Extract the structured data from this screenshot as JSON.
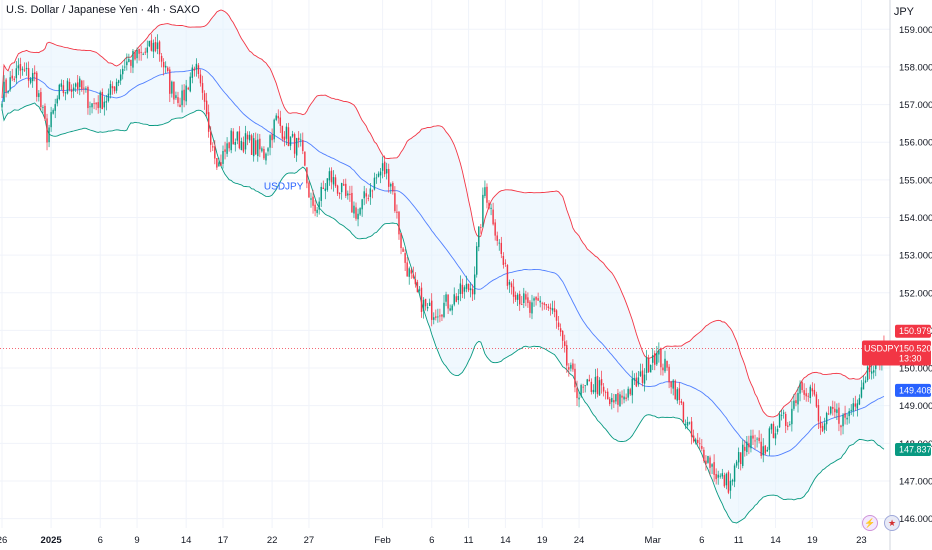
{
  "header": {
    "symbol_title": "U.S. Dollar / Japanese Yen · 4h · SAXO",
    "currency": "JPY"
  },
  "icons": {
    "bolt": "lightning-icon",
    "flag": "us-flag-icon"
  },
  "colors": {
    "up": "#089981",
    "down": "#f23645",
    "basis": "#2962ff",
    "upper": "#f23645",
    "lower": "#089981",
    "band_fill": "#e3f2fd",
    "price_tag": "#f23645",
    "basis_tag": "#2962ff",
    "lower_tag": "#089981"
  },
  "chart_data": {
    "type": "candlestick",
    "symbol": "USDJPY",
    "series_label": "USDJPY",
    "y_ticks": [
      "146.000",
      "147.000",
      "148.000",
      "149.000",
      "150.000",
      "151.000",
      "152.000",
      "153.000",
      "154.000",
      "155.000",
      "156.000",
      "157.000",
      "158.000",
      "159.000"
    ],
    "ylim": [
      145.75,
      159.3
    ],
    "x_ticks": [
      {
        "label": "26",
        "bar": 0
      },
      {
        "label": "2025",
        "bar": 24,
        "bold": true
      },
      {
        "label": "6",
        "bar": 48
      },
      {
        "label": "9",
        "bar": 66
      },
      {
        "label": "14",
        "bar": 90
      },
      {
        "label": "17",
        "bar": 108
      },
      {
        "label": "22",
        "bar": 132
      },
      {
        "label": "27",
        "bar": 150
      },
      {
        "label": "Feb",
        "bar": 186
      },
      {
        "label": "6",
        "bar": 210
      },
      {
        "label": "11",
        "bar": 228
      },
      {
        "label": "14",
        "bar": 246
      },
      {
        "label": "19",
        "bar": 264
      },
      {
        "label": "24",
        "bar": 282
      },
      {
        "label": "Mar",
        "bar": 318
      },
      {
        "label": "6",
        "bar": 342
      },
      {
        "label": "11",
        "bar": 360
      },
      {
        "label": "14",
        "bar": 378
      },
      {
        "label": "19",
        "bar": 396
      },
      {
        "label": "23",
        "bar": 420
      }
    ],
    "bar_count": 432,
    "anchors": [
      {
        "bar": 0,
        "close": 157.3
      },
      {
        "bar": 8,
        "close": 157.9
      },
      {
        "bar": 16,
        "close": 157.7
      },
      {
        "bar": 22,
        "close": 156.2
      },
      {
        "bar": 28,
        "close": 157.3
      },
      {
        "bar": 36,
        "close": 157.6
      },
      {
        "bar": 44,
        "close": 157.0
      },
      {
        "bar": 52,
        "close": 157.2
      },
      {
        "bar": 60,
        "close": 158.1
      },
      {
        "bar": 68,
        "close": 158.3
      },
      {
        "bar": 76,
        "close": 158.6
      },
      {
        "bar": 82,
        "close": 157.5
      },
      {
        "bar": 88,
        "close": 157.1
      },
      {
        "bar": 94,
        "close": 158.1
      },
      {
        "bar": 100,
        "close": 156.6
      },
      {
        "bar": 106,
        "close": 155.4
      },
      {
        "bar": 112,
        "close": 156.1
      },
      {
        "bar": 120,
        "close": 156.0
      },
      {
        "bar": 128,
        "close": 155.7
      },
      {
        "bar": 134,
        "close": 156.6
      },
      {
        "bar": 140,
        "close": 156.1
      },
      {
        "bar": 146,
        "close": 155.8
      },
      {
        "bar": 152,
        "close": 154.1
      },
      {
        "bar": 160,
        "close": 155.1
      },
      {
        "bar": 168,
        "close": 154.5
      },
      {
        "bar": 174,
        "close": 154.1
      },
      {
        "bar": 180,
        "close": 154.8
      },
      {
        "bar": 186,
        "close": 155.3
      },
      {
        "bar": 190,
        "close": 155.0
      },
      {
        "bar": 196,
        "close": 153.0
      },
      {
        "bar": 202,
        "close": 152.0
      },
      {
        "bar": 208,
        "close": 151.5
      },
      {
        "bar": 214,
        "close": 151.6
      },
      {
        "bar": 222,
        "close": 151.9
      },
      {
        "bar": 230,
        "close": 152.2
      },
      {
        "bar": 236,
        "close": 154.8
      },
      {
        "bar": 240,
        "close": 154.0
      },
      {
        "bar": 246,
        "close": 152.5
      },
      {
        "bar": 252,
        "close": 152.0
      },
      {
        "bar": 258,
        "close": 151.5
      },
      {
        "bar": 264,
        "close": 151.8
      },
      {
        "bar": 270,
        "close": 151.4
      },
      {
        "bar": 276,
        "close": 150.1
      },
      {
        "bar": 282,
        "close": 149.3
      },
      {
        "bar": 290,
        "close": 149.6
      },
      {
        "bar": 298,
        "close": 149.0
      },
      {
        "bar": 306,
        "close": 149.4
      },
      {
        "bar": 312,
        "close": 149.7
      },
      {
        "bar": 318,
        "close": 150.4
      },
      {
        "bar": 322,
        "close": 150.2
      },
      {
        "bar": 328,
        "close": 149.6
      },
      {
        "bar": 334,
        "close": 148.6
      },
      {
        "bar": 338,
        "close": 148.0
      },
      {
        "bar": 344,
        "close": 147.7
      },
      {
        "bar": 350,
        "close": 147.1
      },
      {
        "bar": 356,
        "close": 146.9
      },
      {
        "bar": 360,
        "close": 147.6
      },
      {
        "bar": 366,
        "close": 148.0
      },
      {
        "bar": 372,
        "close": 147.8
      },
      {
        "bar": 378,
        "close": 148.5
      },
      {
        "bar": 384,
        "close": 148.6
      },
      {
        "bar": 390,
        "close": 149.6
      },
      {
        "bar": 396,
        "close": 149.4
      },
      {
        "bar": 400,
        "close": 148.3
      },
      {
        "bar": 406,
        "close": 148.8
      },
      {
        "bar": 412,
        "close": 148.6
      },
      {
        "bar": 418,
        "close": 149.3
      },
      {
        "bar": 424,
        "close": 150.1
      },
      {
        "bar": 431,
        "close": 150.5
      }
    ],
    "bollinger": {
      "period": 40,
      "mult": 2
    },
    "last_price": "150.520",
    "countdown": "13:30",
    "upper_value": "150.979",
    "basis_value": "149.408",
    "lower_value": "147.837",
    "last_price_num": 150.52,
    "upper_num": 150.979,
    "basis_num": 149.408,
    "lower_num": 147.837
  }
}
